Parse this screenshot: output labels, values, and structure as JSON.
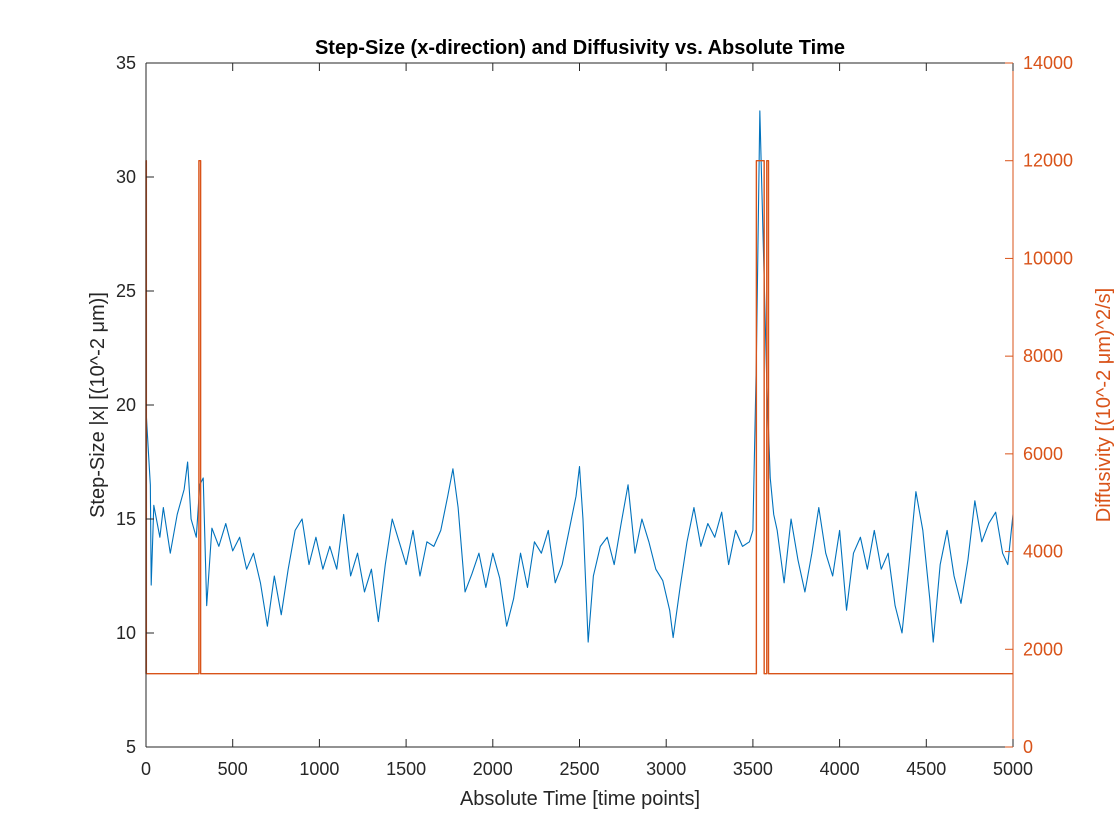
{
  "chart_data": {
    "type": "line",
    "title": "Step-Size (x-direction) and Diffusivity vs. Absolute Time",
    "xlabel": "Absolute Time [time points]",
    "ylabel_left": "Step-Size |x| [(10^-2 μm)]",
    "ylabel_right": "Diffusivity [(10^-2 μm)^2/s]",
    "xlim": [
      0,
      5000
    ],
    "ylim_left": [
      5,
      35
    ],
    "ylim_right": [
      0,
      14000
    ],
    "xticks": [
      0,
      500,
      1000,
      1500,
      2000,
      2500,
      3000,
      3500,
      4000,
      4500,
      5000
    ],
    "yticks_left": [
      5,
      10,
      15,
      20,
      25,
      30,
      35
    ],
    "yticks_right": [
      0,
      2000,
      4000,
      6000,
      8000,
      10000,
      12000,
      14000
    ],
    "grid": false,
    "colors": {
      "left": "#000000",
      "right": "#d95319",
      "series_step": "#0072bd",
      "series_diff": "#d95319"
    },
    "series": [
      {
        "axis": "left",
        "points": [
          [
            0,
            19.8
          ],
          [
            15,
            17.8
          ],
          [
            25,
            16.5
          ],
          [
            30,
            12.1
          ],
          [
            45,
            15.6
          ],
          [
            80,
            14.2
          ],
          [
            100,
            15.5
          ],
          [
            140,
            13.5
          ],
          [
            180,
            15.2
          ],
          [
            220,
            16.3
          ],
          [
            240,
            17.5
          ],
          [
            260,
            15.0
          ],
          [
            290,
            14.2
          ],
          [
            310,
            16.5
          ],
          [
            330,
            16.8
          ],
          [
            350,
            11.2
          ],
          [
            380,
            14.6
          ],
          [
            420,
            13.8
          ],
          [
            460,
            14.8
          ],
          [
            500,
            13.6
          ],
          [
            540,
            14.2
          ],
          [
            580,
            12.8
          ],
          [
            620,
            13.5
          ],
          [
            660,
            12.2
          ],
          [
            700,
            10.3
          ],
          [
            740,
            12.5
          ],
          [
            780,
            10.8
          ],
          [
            820,
            12.8
          ],
          [
            860,
            14.5
          ],
          [
            900,
            15.0
          ],
          [
            940,
            13.0
          ],
          [
            980,
            14.2
          ],
          [
            1020,
            12.8
          ],
          [
            1060,
            13.8
          ],
          [
            1100,
            12.8
          ],
          [
            1140,
            15.2
          ],
          [
            1180,
            12.5
          ],
          [
            1220,
            13.5
          ],
          [
            1260,
            11.8
          ],
          [
            1300,
            12.8
          ],
          [
            1340,
            10.5
          ],
          [
            1380,
            13.0
          ],
          [
            1420,
            15.0
          ],
          [
            1460,
            14.0
          ],
          [
            1500,
            13.0
          ],
          [
            1540,
            14.5
          ],
          [
            1580,
            12.5
          ],
          [
            1620,
            14.0
          ],
          [
            1660,
            13.8
          ],
          [
            1700,
            14.5
          ],
          [
            1740,
            16.0
          ],
          [
            1770,
            17.2
          ],
          [
            1800,
            15.5
          ],
          [
            1840,
            11.8
          ],
          [
            1880,
            12.6
          ],
          [
            1920,
            13.5
          ],
          [
            1960,
            12.0
          ],
          [
            2000,
            13.5
          ],
          [
            2040,
            12.4
          ],
          [
            2080,
            10.3
          ],
          [
            2120,
            11.5
          ],
          [
            2160,
            13.5
          ],
          [
            2200,
            12.0
          ],
          [
            2240,
            14.0
          ],
          [
            2280,
            13.5
          ],
          [
            2320,
            14.5
          ],
          [
            2360,
            12.2
          ],
          [
            2400,
            13.0
          ],
          [
            2440,
            14.5
          ],
          [
            2480,
            16.0
          ],
          [
            2500,
            17.3
          ],
          [
            2520,
            15.0
          ],
          [
            2550,
            9.6
          ],
          [
            2580,
            12.5
          ],
          [
            2620,
            13.8
          ],
          [
            2660,
            14.2
          ],
          [
            2700,
            13.0
          ],
          [
            2740,
            14.8
          ],
          [
            2780,
            16.5
          ],
          [
            2820,
            13.5
          ],
          [
            2860,
            15.0
          ],
          [
            2900,
            14.0
          ],
          [
            2940,
            12.8
          ],
          [
            2980,
            12.3
          ],
          [
            3020,
            11.0
          ],
          [
            3040,
            9.8
          ],
          [
            3080,
            12.0
          ],
          [
            3120,
            14.0
          ],
          [
            3160,
            15.5
          ],
          [
            3200,
            13.8
          ],
          [
            3240,
            14.8
          ],
          [
            3280,
            14.2
          ],
          [
            3320,
            15.3
          ],
          [
            3360,
            13.0
          ],
          [
            3400,
            14.5
          ],
          [
            3440,
            13.8
          ],
          [
            3480,
            14.0
          ],
          [
            3500,
            14.5
          ],
          [
            3520,
            22.0
          ],
          [
            3540,
            32.9
          ],
          [
            3560,
            27.0
          ],
          [
            3580,
            21.0
          ],
          [
            3600,
            16.8
          ],
          [
            3620,
            15.2
          ],
          [
            3640,
            14.5
          ],
          [
            3680,
            12.2
          ],
          [
            3720,
            15.0
          ],
          [
            3760,
            13.2
          ],
          [
            3800,
            11.8
          ],
          [
            3840,
            13.5
          ],
          [
            3880,
            15.5
          ],
          [
            3920,
            13.5
          ],
          [
            3960,
            12.5
          ],
          [
            4000,
            14.5
          ],
          [
            4040,
            11.0
          ],
          [
            4080,
            13.5
          ],
          [
            4120,
            14.2
          ],
          [
            4160,
            12.8
          ],
          [
            4200,
            14.5
          ],
          [
            4240,
            12.8
          ],
          [
            4280,
            13.5
          ],
          [
            4320,
            11.2
          ],
          [
            4360,
            10.0
          ],
          [
            4400,
            13.0
          ],
          [
            4440,
            16.2
          ],
          [
            4480,
            14.5
          ],
          [
            4520,
            11.5
          ],
          [
            4540,
            9.6
          ],
          [
            4580,
            13.0
          ],
          [
            4620,
            14.5
          ],
          [
            4660,
            12.5
          ],
          [
            4700,
            11.3
          ],
          [
            4740,
            13.2
          ],
          [
            4780,
            15.8
          ],
          [
            4820,
            14.0
          ],
          [
            4860,
            14.8
          ],
          [
            4900,
            15.3
          ],
          [
            4940,
            13.5
          ],
          [
            4970,
            13.0
          ],
          [
            5000,
            15.2
          ]
        ]
      },
      {
        "axis": "right",
        "points": [
          [
            0,
            1500
          ],
          [
            0,
            12000
          ],
          [
            2,
            12000
          ],
          [
            2,
            1500
          ],
          [
            305,
            1500
          ],
          [
            305,
            12000
          ],
          [
            315,
            12000
          ],
          [
            315,
            1500
          ],
          [
            3520,
            1500
          ],
          [
            3520,
            12000
          ],
          [
            3565,
            12000
          ],
          [
            3565,
            1500
          ],
          [
            3580,
            1500
          ],
          [
            3580,
            12000
          ],
          [
            3590,
            12000
          ],
          [
            3590,
            1500
          ],
          [
            5000,
            1500
          ]
        ]
      }
    ]
  }
}
